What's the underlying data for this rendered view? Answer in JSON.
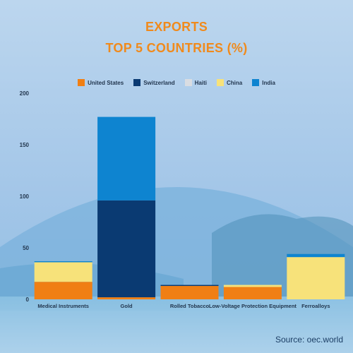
{
  "title_line1": "EXPORTS",
  "title_line2": "TOP 5 COUNTRIES (%)",
  "source": "Source: oec.world",
  "colors": {
    "title": "#f08a1c",
    "United States": "#f07f14",
    "Switzerland": "#0a3a72",
    "Haiti": "#d9dde2",
    "China": "#f7e27a",
    "India": "#0e84d0"
  },
  "chart_data": {
    "type": "bar",
    "stacked": true,
    "categories": [
      "Medical Instruments",
      "Gold",
      "Rolled Tobacco",
      "Low-Voltage Protection Equipment",
      "Ferroalloys"
    ],
    "series": [
      {
        "name": "United States",
        "values": [
          17,
          2,
          13,
          12,
          0
        ]
      },
      {
        "name": "Switzerland",
        "values": [
          0,
          94,
          1,
          0,
          0
        ]
      },
      {
        "name": "Haiti",
        "values": [
          0,
          0,
          0,
          0,
          0
        ]
      },
      {
        "name": "China",
        "values": [
          19,
          0,
          0,
          2,
          41
        ]
      },
      {
        "name": "India",
        "values": [
          1,
          81,
          0,
          0,
          3
        ]
      }
    ],
    "ylim": [
      0,
      200
    ],
    "yticks": [
      0,
      50,
      100,
      150,
      200
    ],
    "xlabel": "",
    "ylabel": "",
    "legend_position": "top",
    "grid": false
  }
}
